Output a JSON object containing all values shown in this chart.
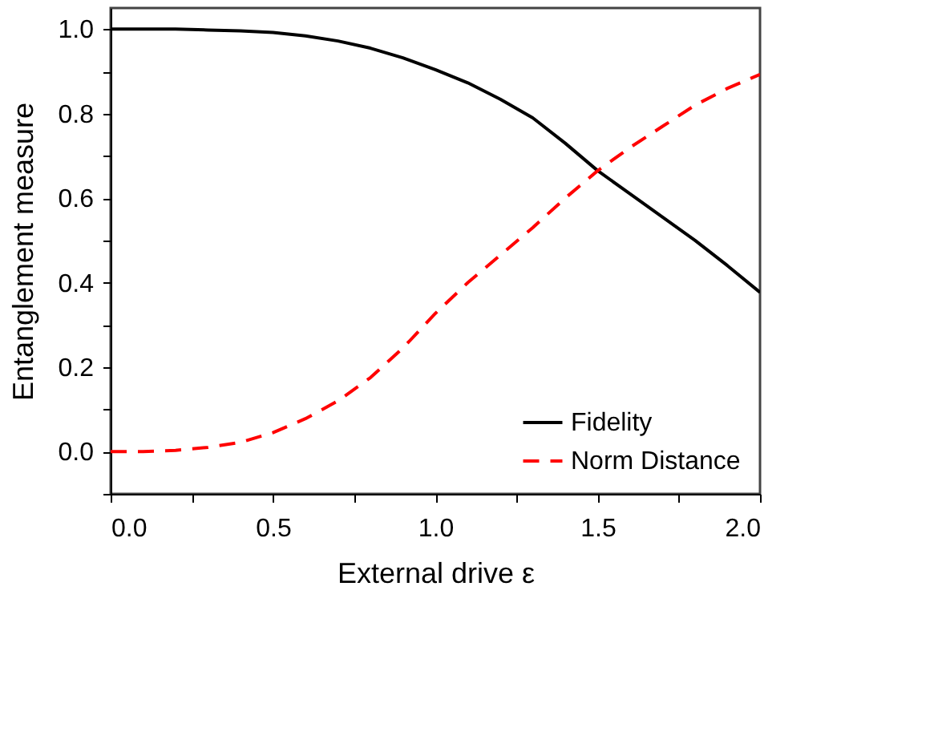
{
  "chart_data": {
    "type": "line",
    "xlabel": "External drive ε",
    "ylabel": "Entanglement measure",
    "x": [
      0,
      0.1,
      0.2,
      0.3,
      0.4,
      0.5,
      0.6,
      0.7,
      0.8,
      0.9,
      1.0,
      1.1,
      1.2,
      1.3,
      1.4,
      1.5,
      1.6,
      1.7,
      1.8,
      1.9,
      2.0
    ],
    "series": [
      {
        "name": "Fidelity",
        "color": "#000000",
        "line_style": "solid",
        "values": [
          1.0,
          1.0,
          1.0,
          0.998,
          0.996,
          0.992,
          0.984,
          0.972,
          0.955,
          0.932,
          0.904,
          0.873,
          0.834,
          0.79,
          0.73,
          0.665,
          0.61,
          0.555,
          0.5,
          0.44,
          0.377
        ]
      },
      {
        "name": "Norm Distance",
        "color": "#ff0000",
        "line_style": "dashed",
        "values": [
          0.0,
          0.0,
          0.003,
          0.01,
          0.022,
          0.045,
          0.078,
          0.12,
          0.175,
          0.245,
          0.327,
          0.4,
          0.465,
          0.53,
          0.6,
          0.665,
          0.72,
          0.77,
          0.82,
          0.86,
          0.893
        ]
      }
    ],
    "xlim": [
      0,
      2
    ],
    "ylim": [
      -0.1,
      1.05
    ],
    "xticks": [
      {
        "value": 0,
        "label": "0.0"
      },
      {
        "value": 0.25,
        "label": null
      },
      0.5,
      {
        "value": 0.75,
        "label": null
      },
      {
        "value": 1,
        "label": "1.0"
      },
      {
        "value": 1.25,
        "label": null
      },
      1.5,
      {
        "value": 1.75,
        "label": null
      },
      {
        "value": 2,
        "label": "2.0"
      }
    ],
    "yticks": [
      {
        "value": -0.1,
        "label": null
      },
      {
        "value": 0,
        "label": "0.0"
      },
      {
        "value": 0.1,
        "label": null
      },
      0.2,
      {
        "value": 0.3,
        "label": null
      },
      0.4,
      {
        "value": 0.5,
        "label": null
      },
      0.6,
      {
        "value": 0.7,
        "label": null
      },
      0.8,
      {
        "value": 0.9,
        "label": null
      },
      {
        "value": 1,
        "label": "1.0"
      }
    ],
    "grid": false,
    "legend": "bottom right",
    "marker": "none"
  }
}
